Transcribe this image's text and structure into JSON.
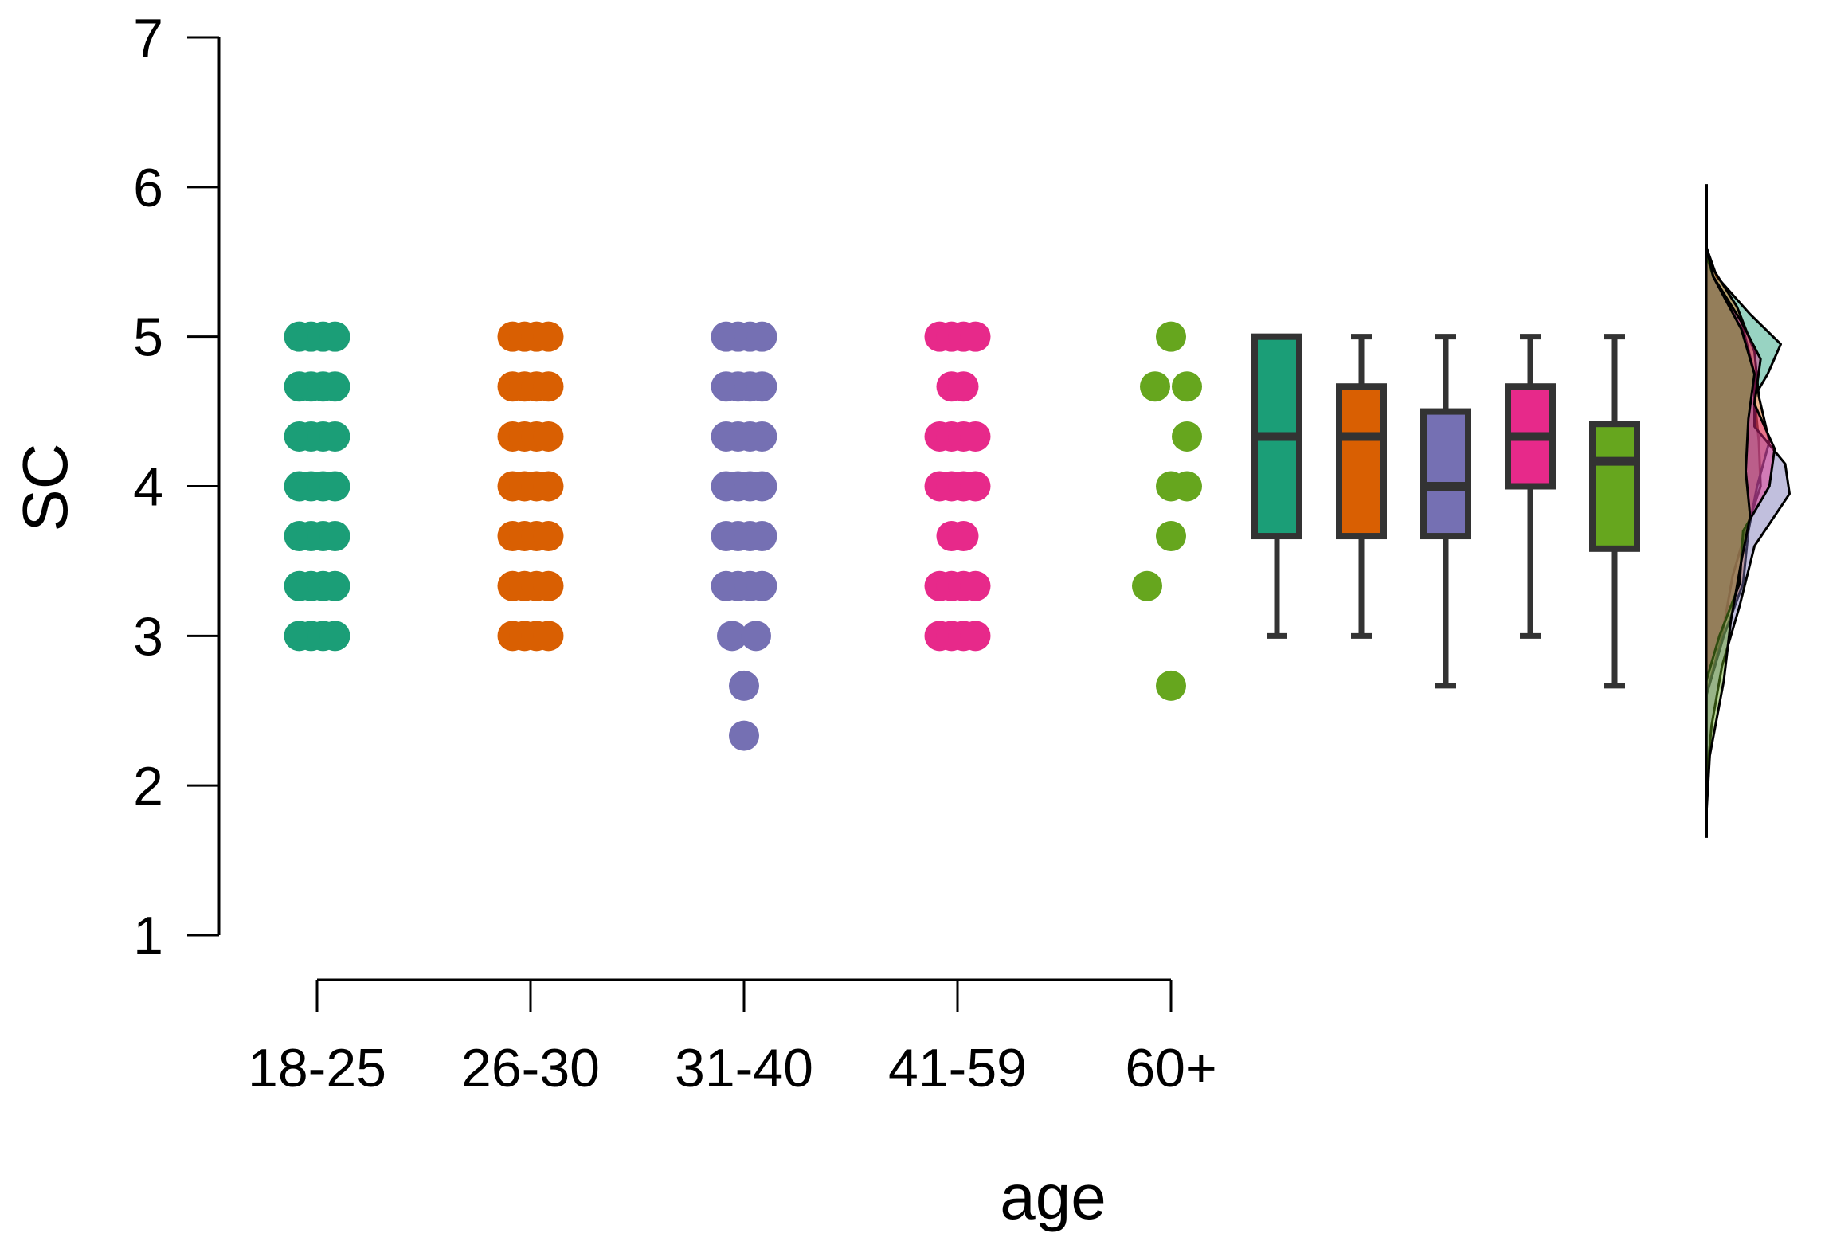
{
  "chart_data": {
    "type": "raincloud",
    "title": "",
    "xlabel": "age",
    "ylabel": "SC",
    "ylim": [
      1,
      7
    ],
    "y_ticks": [
      "1",
      "2",
      "3",
      "4",
      "5",
      "6",
      "7"
    ],
    "categories": [
      "18-25",
      "26-30",
      "31-40",
      "41-59",
      "60+"
    ],
    "colors": [
      "#1b9e77",
      "#d95f02",
      "#7570b3",
      "#e7298a",
      "#66a61e"
    ],
    "box_outline_color": "#333333",
    "series": [
      {
        "name": "18-25",
        "points": [
          5,
          4.667,
          4.333,
          4,
          3.667,
          3.333,
          3
        ],
        "box": {
          "min": 3,
          "q1": 3.667,
          "median": 4.333,
          "q3": 5,
          "max": 5
        },
        "density": [
          [
            2.6,
            0.0
          ],
          [
            3.0,
            0.18
          ],
          [
            3.4,
            0.3
          ],
          [
            3.7,
            0.45
          ],
          [
            4.0,
            0.62
          ],
          [
            4.3,
            0.6
          ],
          [
            4.6,
            0.55
          ],
          [
            4.75,
            0.7
          ],
          [
            4.95,
            0.85
          ],
          [
            5.15,
            0.5
          ],
          [
            5.4,
            0.12
          ],
          [
            5.6,
            0.0
          ]
        ]
      },
      {
        "name": "26-30",
        "points": [
          5,
          4.667,
          4.333,
          4,
          3.667,
          3.333,
          3
        ],
        "box": {
          "min": 3,
          "q1": 3.667,
          "median": 4.333,
          "q3": 4.667,
          "max": 5
        },
        "density": [
          [
            2.6,
            0.0
          ],
          [
            3.0,
            0.2
          ],
          [
            3.35,
            0.42
          ],
          [
            3.7,
            0.48
          ],
          [
            4.0,
            0.58
          ],
          [
            4.3,
            0.72
          ],
          [
            4.6,
            0.6
          ],
          [
            4.9,
            0.55
          ],
          [
            5.2,
            0.35
          ],
          [
            5.45,
            0.08
          ],
          [
            5.6,
            0.0
          ]
        ]
      },
      {
        "name": "31-40",
        "points": [
          5,
          4.667,
          4.333,
          4,
          3.667,
          3.333,
          3,
          2.667,
          2.333
        ],
        "box": {
          "min": 2.667,
          "q1": 3.667,
          "median": 4,
          "q3": 4.5,
          "max": 5
        },
        "density": [
          [
            2.0,
            0.0
          ],
          [
            2.4,
            0.06
          ],
          [
            2.8,
            0.18
          ],
          [
            3.2,
            0.38
          ],
          [
            3.6,
            0.55
          ],
          [
            3.95,
            0.95
          ],
          [
            4.15,
            0.9
          ],
          [
            4.4,
            0.55
          ],
          [
            4.75,
            0.55
          ],
          [
            5.1,
            0.4
          ],
          [
            5.4,
            0.08
          ],
          [
            5.6,
            0.0
          ]
        ]
      },
      {
        "name": "41-59",
        "points": [
          5,
          4.667,
          4.333,
          4,
          3.667,
          3.333,
          3
        ],
        "box": {
          "min": 3,
          "q1": 4,
          "median": 4.333,
          "q3": 4.667,
          "max": 5
        },
        "density": [
          [
            2.7,
            0.0
          ],
          [
            3.0,
            0.15
          ],
          [
            3.35,
            0.38
          ],
          [
            3.7,
            0.42
          ],
          [
            4.0,
            0.72
          ],
          [
            4.25,
            0.78
          ],
          [
            4.55,
            0.55
          ],
          [
            4.85,
            0.62
          ],
          [
            5.1,
            0.4
          ],
          [
            5.4,
            0.08
          ],
          [
            5.55,
            0.0
          ]
        ]
      },
      {
        "name": "60+",
        "points": [
          5,
          4.667,
          4.333,
          4,
          3.667,
          3.333,
          2.667
        ],
        "box": {
          "min": 2.667,
          "q1": 3.583,
          "median": 4.167,
          "q3": 4.417,
          "max": 5
        },
        "density": [
          [
            1.8,
            0.0
          ],
          [
            2.2,
            0.04
          ],
          [
            2.7,
            0.2
          ],
          [
            3.1,
            0.28
          ],
          [
            3.5,
            0.4
          ],
          [
            3.8,
            0.5
          ],
          [
            4.1,
            0.45
          ],
          [
            4.45,
            0.48
          ],
          [
            4.75,
            0.55
          ],
          [
            5.05,
            0.4
          ],
          [
            5.4,
            0.08
          ],
          [
            5.6,
            0.0
          ]
        ]
      }
    ]
  }
}
